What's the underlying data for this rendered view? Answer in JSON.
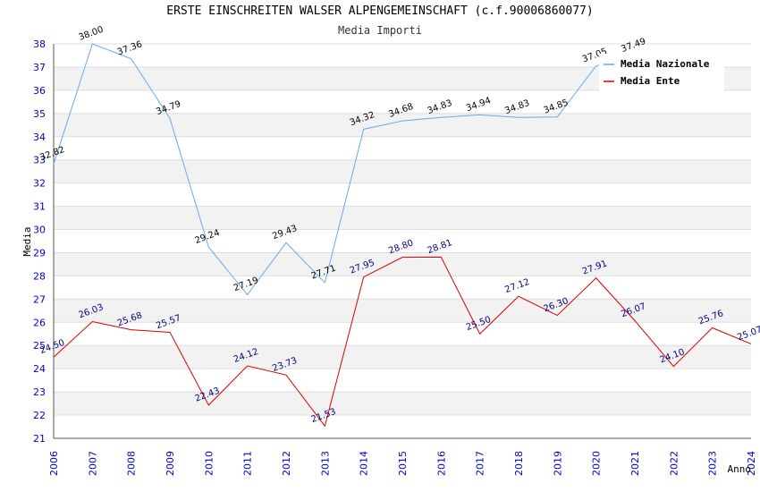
{
  "chart_data": {
    "type": "line",
    "title": "ERSTE EINSCHREITEN WALSER ALPENGEMEINSCHAFT (c.f.90006860077)",
    "subtitle": "Media Importi",
    "xlabel": "Anno",
    "ylabel": "Media",
    "ylim": [
      21,
      38
    ],
    "yticks": [
      21,
      22,
      23,
      24,
      25,
      26,
      27,
      28,
      29,
      30,
      31,
      32,
      33,
      34,
      35,
      36,
      37,
      38
    ],
    "categories": [
      "2006",
      "2007",
      "2008",
      "2009",
      "2010",
      "2011",
      "2012",
      "2013",
      "2014",
      "2015",
      "2016",
      "2017",
      "2018",
      "2019",
      "2020",
      "2021",
      "2022",
      "2023",
      "2024"
    ],
    "legend_position": "top-right",
    "series": [
      {
        "name": "Media Nazionale",
        "color": "#66aaee",
        "values": [
          32.82,
          38.0,
          37.36,
          34.79,
          29.24,
          27.19,
          29.43,
          27.71,
          34.32,
          34.68,
          34.83,
          34.94,
          34.83,
          34.85,
          37.05,
          37.49,
          null,
          null,
          null
        ],
        "labels": [
          "32.82",
          "38.00",
          "37.36",
          "34.79",
          "29.24",
          "27.19",
          "29.43",
          "27.71",
          "34.32",
          "34.68",
          "34.83",
          "34.94",
          "34.83",
          "34.85",
          "37.05",
          "37.49",
          "",
          "",
          ""
        ]
      },
      {
        "name": "Media Ente",
        "color": "#dd0000",
        "values": [
          24.5,
          26.03,
          25.68,
          25.57,
          22.43,
          24.12,
          23.73,
          21.53,
          27.95,
          28.8,
          28.81,
          25.5,
          27.12,
          26.3,
          27.91,
          26.07,
          24.1,
          25.76,
          25.07
        ],
        "labels": [
          "24.50",
          "26.03",
          "25.68",
          "25.57",
          "22.43",
          "24.12",
          "23.73",
          "21.53",
          "27.95",
          "28.80",
          "28.81",
          "25.50",
          "27.12",
          "26.30",
          "27.91",
          "26.07",
          "24.10",
          "25.76",
          "25.07"
        ]
      }
    ]
  }
}
